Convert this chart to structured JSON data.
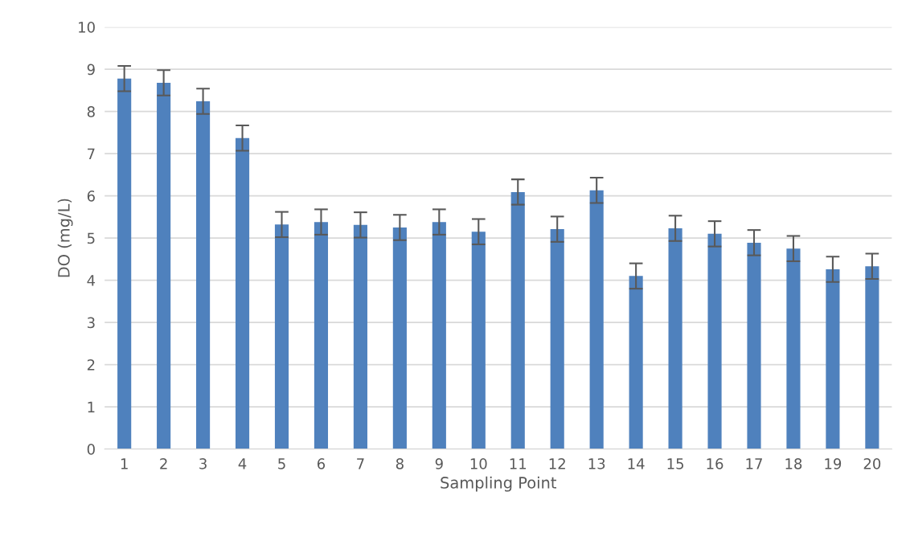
{
  "chart_data": {
    "type": "bar",
    "xlabel": "Sampling Point",
    "ylabel": "DO (mg/L)",
    "categories": [
      "1",
      "2",
      "3",
      "4",
      "5",
      "6",
      "7",
      "8",
      "9",
      "10",
      "11",
      "12",
      "13",
      "14",
      "15",
      "16",
      "17",
      "18",
      "19",
      "20"
    ],
    "series": [
      {
        "color": "#4f81bd",
        "values": [
          8.78,
          8.68,
          8.24,
          7.37,
          5.32,
          5.38,
          5.31,
          5.25,
          5.38,
          5.15,
          6.09,
          5.21,
          6.13,
          4.1,
          5.23,
          5.1,
          4.89,
          4.75,
          4.26,
          4.33
        ],
        "errors": [
          0.3,
          0.3,
          0.3,
          0.3,
          0.3,
          0.3,
          0.3,
          0.3,
          0.3,
          0.3,
          0.3,
          0.3,
          0.3,
          0.3,
          0.3,
          0.3,
          0.3,
          0.3,
          0.3,
          0.3
        ]
      }
    ],
    "ylim": [
      0,
      10
    ],
    "yticks": [
      0,
      1,
      2,
      3,
      4,
      5,
      6,
      7,
      8,
      9,
      10
    ],
    "grid": "y",
    "legend": false
  }
}
